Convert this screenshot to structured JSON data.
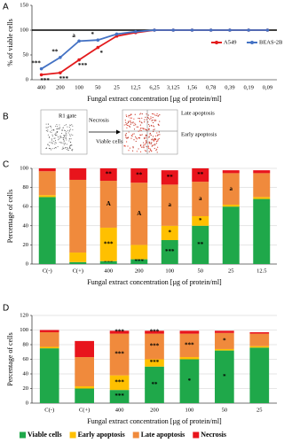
{
  "panel_labels": [
    "A",
    "B",
    "C",
    "D"
  ],
  "flow_diagram": {
    "gate": "R1 gate",
    "necrosis": "Necrosis",
    "late": "Late apoptosis",
    "viable": "Viable cells",
    "early": "Early apoptosis"
  },
  "chart_data": [
    {
      "type": "line",
      "x_label": "Fungal extract concentration [µg of protein/ml]",
      "y_label": "% of viable cells",
      "categories": [
        "400",
        "200",
        "100",
        "50",
        "25",
        "12,5",
        "6,25",
        "3,125",
        "1,56",
        "0,78",
        "0,39",
        "0,19",
        "0,09"
      ],
      "ylim": [
        0,
        150
      ],
      "yticks": [
        0,
        50,
        100,
        150
      ],
      "reference_line": 100,
      "legend": "right",
      "series": [
        {
          "name": "A549",
          "color": "#e31a1c",
          "values": [
            10,
            14,
            40,
            65,
            88,
            95,
            100,
            100,
            100,
            100,
            100,
            100,
            100
          ],
          "annotations": [
            "***",
            "***",
            "***",
            "*",
            null,
            null,
            null,
            null,
            null,
            null,
            null,
            null,
            null
          ]
        },
        {
          "name": "BEAS-2B",
          "color": "#4472c4",
          "values": [
            22,
            45,
            78,
            80,
            92,
            97,
            100,
            100,
            100,
            100,
            100,
            100,
            100
          ],
          "annotations": [
            "***",
            "**",
            "a",
            "*",
            null,
            null,
            null,
            null,
            null,
            null,
            null,
            null,
            null
          ]
        }
      ]
    },
    {
      "type": "stacked_bar",
      "x_label": "Fungal extract concentration [µg of protein/ml]",
      "y_label": "Percentage of cells",
      "categories": [
        "C(-)",
        "C(+)",
        "400",
        "200",
        "100",
        "50",
        "25",
        "12.5"
      ],
      "ylim": [
        0,
        100
      ],
      "yticks": [
        0,
        20,
        40,
        60,
        80,
        100
      ],
      "grid": true,
      "series": [
        {
          "color": "#1fa84a",
          "values": [
            70,
            2,
            3,
            5,
            25,
            40,
            60,
            68
          ],
          "annotations": [
            null,
            null,
            "***",
            "***",
            "***",
            "**",
            null,
            null
          ]
        },
        {
          "color": "#ffc000",
          "values": [
            2,
            10,
            35,
            15,
            15,
            10,
            2,
            2
          ],
          "annotations": [
            null,
            null,
            "***",
            null,
            "*",
            "*",
            null,
            null
          ]
        },
        {
          "color": "#f08a3c",
          "values": [
            25,
            76,
            49,
            65,
            43,
            36,
            33,
            25
          ],
          "annotations": [
            null,
            null,
            "A",
            "A",
            "a",
            "a",
            "a",
            null
          ]
        },
        {
          "color": "#e8141c",
          "values": [
            3,
            12,
            13,
            15,
            15,
            14,
            3,
            3
          ],
          "annotations": [
            null,
            null,
            "**",
            "**",
            "**",
            "**",
            null,
            null
          ]
        }
      ]
    },
    {
      "type": "stacked_bar",
      "x_label": "Fungal extract concentration [µg of protein/ml]",
      "y_label": "Percentage of cells",
      "categories": [
        "C(-)",
        "C(+)",
        "400",
        "200",
        "100",
        "50",
        "25"
      ],
      "ylim": [
        0,
        120
      ],
      "yticks": [
        0,
        20,
        40,
        60,
        80,
        100,
        120
      ],
      "grid": true,
      "legend": "bottom",
      "series": [
        {
          "name": "Viable cells",
          "color": "#1fa84a",
          "values": [
            75,
            20,
            18,
            50,
            60,
            72,
            76
          ],
          "annotations": [
            null,
            null,
            "***",
            "**",
            "*",
            "*",
            null
          ]
        },
        {
          "name": "Early apoptosis",
          "color": "#ffc000",
          "values": [
            2,
            3,
            20,
            10,
            3,
            2,
            2
          ],
          "annotations": [
            null,
            null,
            "***",
            "***",
            null,
            null,
            null
          ]
        },
        {
          "name": "Late apoptosis",
          "color": "#f08a3c",
          "values": [
            20,
            40,
            57,
            35,
            32,
            22,
            17
          ],
          "annotations": [
            null,
            null,
            "***",
            "***",
            "***",
            "*",
            null
          ]
        },
        {
          "name": "Necrosis",
          "color": "#e8141c",
          "values": [
            3,
            22,
            4,
            4,
            4,
            3,
            2
          ],
          "annotations": [
            null,
            null,
            "***",
            "***",
            null,
            null,
            null
          ]
        }
      ]
    }
  ]
}
